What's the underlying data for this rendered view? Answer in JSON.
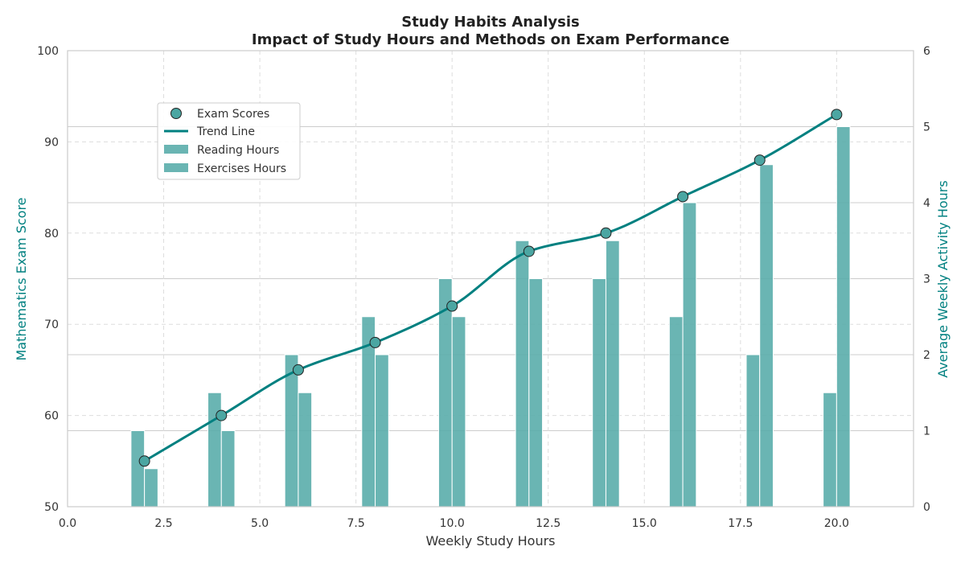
{
  "chart_data": {
    "type": "bar",
    "title": "Study Habits Analysis",
    "subtitle": "Impact of Study Hours and Methods on Exam Performance",
    "xlabel": "Weekly Study Hours",
    "ylabel_left": "Mathematics Exam Score",
    "ylabel_right": "Average Weekly Activity Hours",
    "xlim": [
      0,
      22
    ],
    "ylim_left": [
      50,
      100
    ],
    "ylim_right": [
      0,
      6
    ],
    "x_ticks": [
      "0.0",
      "2.5",
      "5.0",
      "7.5",
      "10.0",
      "12.5",
      "15.0",
      "17.5",
      "20.0"
    ],
    "y_left_ticks": [
      "50",
      "60",
      "70",
      "80",
      "90",
      "100"
    ],
    "y_right_ticks": [
      "0",
      "1",
      "2",
      "3",
      "4",
      "5",
      "6"
    ],
    "grid": true,
    "legend_position": "upper-left",
    "x": [
      2,
      4,
      6,
      8,
      10,
      12,
      14,
      16,
      18,
      20
    ],
    "series": [
      {
        "name": "Exam Scores",
        "kind": "scatter",
        "axis": "left",
        "values": [
          55,
          60,
          65,
          68,
          72,
          78,
          80,
          84,
          88,
          93
        ]
      },
      {
        "name": "Trend Line",
        "kind": "line",
        "axis": "left",
        "values": [
          55,
          60,
          65,
          68,
          72,
          78,
          80,
          84,
          88,
          93
        ]
      },
      {
        "name": "Reading Hours",
        "kind": "bar",
        "axis": "right",
        "values": [
          1,
          1.5,
          2,
          2.5,
          3,
          3.5,
          3,
          2.5,
          2,
          1.5
        ]
      },
      {
        "name": "Exercises Hours",
        "kind": "bar",
        "axis": "right",
        "values": [
          0.5,
          1,
          1.5,
          2,
          2.5,
          3,
          3.5,
          4,
          4.5,
          5
        ]
      }
    ],
    "colors": {
      "bar": "#5aadab",
      "line": "#008080",
      "marker": "#4ba6a2",
      "axis_label": "#008080"
    }
  }
}
